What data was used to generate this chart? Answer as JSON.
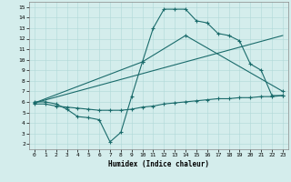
{
  "title": "",
  "xlabel": "Humidex (Indice chaleur)",
  "bg_color": "#d4edec",
  "line_color": "#1a6b6b",
  "xlim": [
    -0.5,
    23.5
  ],
  "ylim": [
    1.5,
    15.5
  ],
  "xticks": [
    0,
    1,
    2,
    3,
    4,
    5,
    6,
    7,
    8,
    9,
    10,
    11,
    12,
    13,
    14,
    15,
    16,
    17,
    18,
    19,
    20,
    21,
    22,
    23
  ],
  "yticks": [
    2,
    3,
    4,
    5,
    6,
    7,
    8,
    9,
    10,
    11,
    12,
    13,
    14,
    15
  ],
  "curve1_x": [
    0,
    1,
    2,
    3,
    4,
    5,
    6,
    7,
    8,
    9,
    10,
    11,
    12,
    13,
    14,
    15,
    16,
    17,
    18,
    19,
    20,
    21,
    22,
    23
  ],
  "curve1_y": [
    6.0,
    6.0,
    5.8,
    5.3,
    4.6,
    4.5,
    4.3,
    2.2,
    3.1,
    6.5,
    9.8,
    13.0,
    14.8,
    14.8,
    14.8,
    13.7,
    13.5,
    12.5,
    12.3,
    11.8,
    9.6,
    9.0,
    6.6,
    6.6
  ],
  "curve2_x": [
    0,
    1,
    2,
    3,
    4,
    5,
    6,
    7,
    8,
    9,
    10,
    11,
    12,
    13,
    14,
    15,
    16,
    17,
    18,
    19,
    20,
    21,
    22,
    23
  ],
  "curve2_y": [
    5.8,
    5.8,
    5.6,
    5.5,
    5.4,
    5.3,
    5.2,
    5.2,
    5.2,
    5.3,
    5.5,
    5.6,
    5.8,
    5.9,
    6.0,
    6.1,
    6.2,
    6.3,
    6.3,
    6.4,
    6.4,
    6.5,
    6.5,
    6.6
  ],
  "curve3_x": [
    0,
    23
  ],
  "curve3_y": [
    5.9,
    12.3
  ],
  "curve4_x": [
    0,
    10,
    14,
    23
  ],
  "curve4_y": [
    5.9,
    9.8,
    12.3,
    7.0
  ]
}
